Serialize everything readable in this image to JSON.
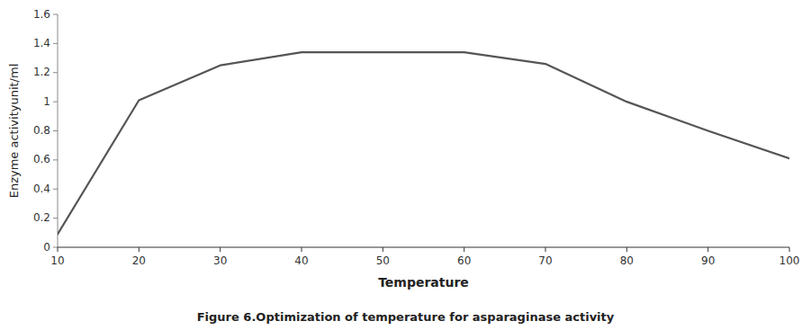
{
  "chart_data": {
    "type": "line",
    "x": [
      10,
      20,
      30,
      40,
      50,
      60,
      70,
      80,
      90,
      100
    ],
    "values": [
      0.09,
      1.01,
      1.25,
      1.34,
      1.34,
      1.34,
      1.26,
      1.0,
      0.8,
      0.61
    ],
    "color": "#555555",
    "x_label": "Temperature",
    "y_label": "Enzyme activityunit/ml",
    "caption": "Figure 6.Optimization of temperature for asparaginase activity",
    "xlim": [
      10,
      100
    ],
    "ylim": [
      0,
      1.6
    ],
    "xticks": [
      10,
      20,
      30,
      40,
      50,
      60,
      70,
      80,
      90,
      100
    ],
    "yticks": [
      0,
      0.2,
      0.4,
      0.6,
      0.8,
      1,
      1.2,
      1.4,
      1.6
    ],
    "grid": false
  }
}
